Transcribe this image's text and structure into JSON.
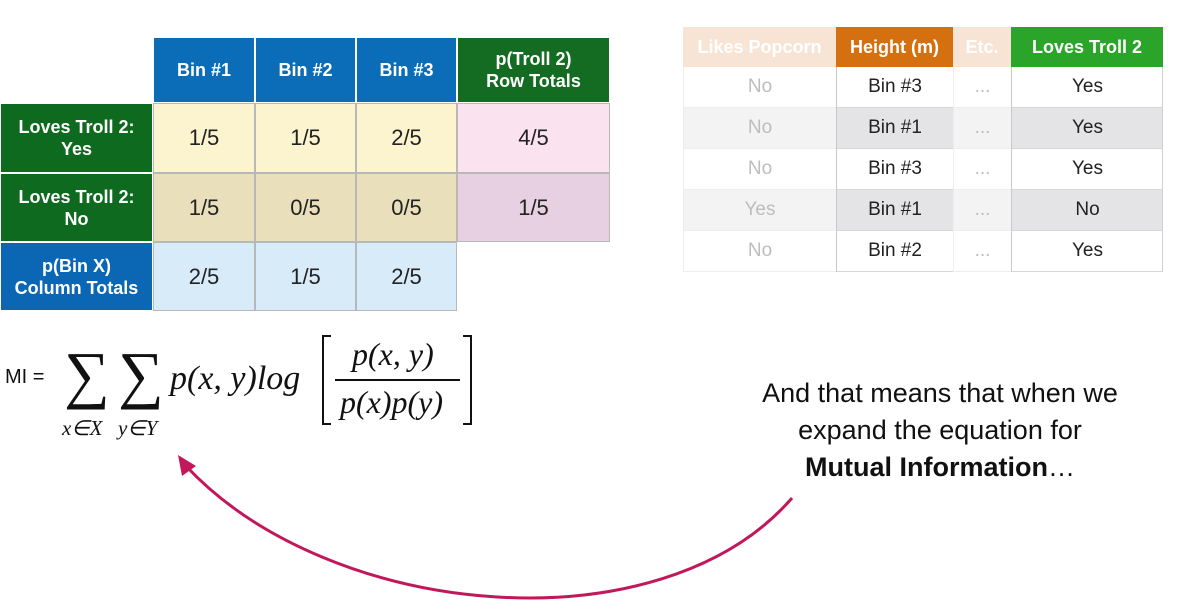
{
  "left_table": {
    "column_headers": [
      [
        "Bin #1"
      ],
      [
        "Bin #2"
      ],
      [
        "Bin #3"
      ],
      [
        "p(Troll 2)",
        "Row Totals"
      ]
    ],
    "rows": [
      {
        "label": [
          "Loves Troll 2:",
          "Yes"
        ],
        "cells": [
          "1/5",
          "1/5",
          "2/5",
          "4/5"
        ]
      },
      {
        "label": [
          "Loves Troll 2:",
          "No"
        ],
        "cells": [
          "1/5",
          "0/5",
          "0/5",
          "1/5"
        ]
      },
      {
        "label": [
          "p(Bin X)",
          "Column Totals"
        ],
        "cells": [
          "2/5",
          "1/5",
          "2/5"
        ]
      }
    ]
  },
  "right_table": {
    "columns": [
      "Likes Popcorn",
      "Height (m)",
      "Etc.",
      "Loves Troll 2"
    ],
    "rows": [
      [
        "No",
        "Bin #3",
        "...",
        "Yes"
      ],
      [
        "No",
        "Bin #1",
        "...",
        "Yes"
      ],
      [
        "No",
        "Bin #3",
        "...",
        "Yes"
      ],
      [
        "Yes",
        "Bin #1",
        "...",
        "No"
      ],
      [
        "No",
        "Bin #2",
        "...",
        "Yes"
      ]
    ]
  },
  "formula": {
    "lhs": "MI =",
    "sum_1": "∑",
    "sum_2": "∑",
    "sub_1": "x∈X",
    "sub_2": "y∈Y",
    "term": "p(x, y)log",
    "numerator": "p(x, y)",
    "denominator": "p(x)p(y)"
  },
  "caption": {
    "lines": [
      "And that means that when we",
      "expand the equation for"
    ],
    "emphasis": "Mutual Information",
    "ellipsis": "…"
  }
}
